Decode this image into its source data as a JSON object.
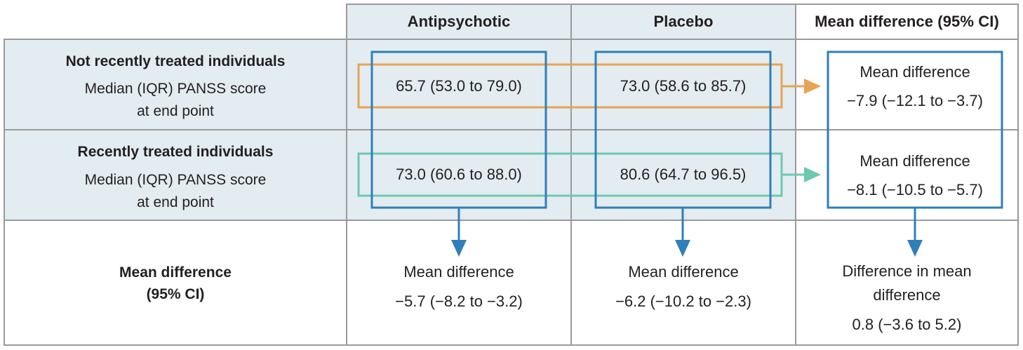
{
  "colors": {
    "shade": "#e3ecf0",
    "grid": "#9a9a9a",
    "blue": "#2f7fb9",
    "orange": "#e8a355",
    "teal": "#6cc9b0",
    "text": "#231f20"
  },
  "columns": {
    "antipsychotic": "Antipsychotic",
    "placebo": "Placebo",
    "mean_difference": "Mean difference (95% CI)"
  },
  "rows": {
    "not_recent": {
      "title": "Not recently treated individuals",
      "subtitle_line1": "Median (IQR) PANSS score",
      "subtitle_line2": "at end point",
      "antipsychotic": "65.7 (53.0 to 79.0)",
      "placebo": "73.0 (58.6 to 85.7)",
      "md_label": "Mean difference",
      "md_value": "−7.9 (−12.1 to −3.7)"
    },
    "recent": {
      "title": "Recently treated individuals",
      "subtitle_line1": "Median (IQR) PANSS score",
      "subtitle_line2": "at end point",
      "antipsychotic": "73.0 (60.6 to 88.0)",
      "placebo": "80.6 (64.7 to 96.5)",
      "md_label": "Mean difference",
      "md_value": "−8.1 (−10.5 to −5.7)"
    }
  },
  "bottom": {
    "label_line1": "Mean difference",
    "label_line2": "(95% CI)",
    "antipsychotic_label": "Mean difference",
    "antipsychotic_value": "−5.7 (−8.2 to −3.2)",
    "placebo_label": "Mean difference",
    "placebo_value": "−6.2 (−10.2 to −2.3)",
    "diff_label_line1": "Difference in mean",
    "diff_label_line2": "difference",
    "diff_value": "0.8 (−3.6 to 5.2)"
  }
}
